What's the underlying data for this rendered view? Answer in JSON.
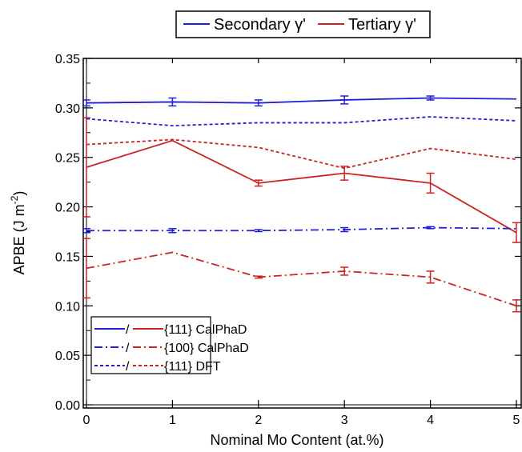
{
  "chart_data": {
    "type": "line",
    "xlabel": "Nominal Mo Content (at.%)",
    "ylabel_main": "APBE (J m",
    "ylabel_sup": "-2",
    "ylabel_close": ")",
    "xlim": [
      0,
      5
    ],
    "ylim": [
      0,
      0.35
    ],
    "x_ticks": [
      "0",
      "1",
      "2",
      "3",
      "4",
      "5"
    ],
    "y_ticks": [
      "0.00",
      "0.05",
      "0.10",
      "0.15",
      "0.20",
      "0.25",
      "0.30",
      "0.35"
    ],
    "grid": false,
    "colors": {
      "secondary": "#1f1fd6",
      "tertiary": "#cc2222"
    },
    "top_legend": {
      "placement": "top-center",
      "entries": [
        {
          "label": "Secondary γ'",
          "color_key": "secondary"
        },
        {
          "label": "Tertiary γ'",
          "color_key": "tertiary"
        }
      ]
    },
    "style_legend": {
      "placement": "bottom-left",
      "separator": "/",
      "entries": [
        {
          "dash": "solid",
          "label": "{111} CalPhaD"
        },
        {
          "dash": "dashdot",
          "label": "{100} CalPhaD"
        },
        {
          "dash": "dotted",
          "label": "{111} DFT"
        }
      ]
    },
    "x": [
      0,
      1,
      2,
      3,
      4,
      5
    ],
    "series": [
      {
        "key": "sec-111-calphad",
        "color_key": "secondary",
        "dash": "solid",
        "values": [
          0.305,
          0.306,
          0.305,
          0.308,
          0.31,
          0.309
        ],
        "errors": [
          0.003,
          0.004,
          0.003,
          0.004,
          0.002,
          0.0
        ]
      },
      {
        "key": "ter-111-calphad",
        "color_key": "tertiary",
        "dash": "solid",
        "values": [
          0.24,
          0.267,
          0.224,
          0.234,
          0.224,
          0.174
        ],
        "errors": [
          0.05,
          0.0,
          0.003,
          0.007,
          0.01,
          0.01
        ]
      },
      {
        "key": "sec-100-calphad",
        "color_key": "secondary",
        "dash": "dashdot",
        "values": [
          0.176,
          0.176,
          0.176,
          0.177,
          0.179,
          0.178
        ],
        "errors": [
          0.002,
          0.002,
          0.001,
          0.002,
          0.001,
          0.0
        ]
      },
      {
        "key": "ter-100-calphad",
        "color_key": "tertiary",
        "dash": "dashdot",
        "values": [
          0.138,
          0.154,
          0.129,
          0.135,
          0.129,
          0.1
        ],
        "errors": [
          0.03,
          0.0,
          0.001,
          0.004,
          0.006,
          0.006
        ]
      },
      {
        "key": "sec-111-dft",
        "color_key": "secondary",
        "dash": "dotted",
        "values": [
          0.289,
          0.282,
          0.285,
          0.285,
          0.291,
          0.287
        ],
        "errors": [
          0,
          0,
          0,
          0,
          0,
          0
        ]
      },
      {
        "key": "ter-111-dft",
        "color_key": "tertiary",
        "dash": "dotted",
        "values": [
          0.263,
          0.268,
          0.26,
          0.239,
          0.259,
          0.248
        ],
        "errors": [
          0,
          0,
          0,
          0,
          0,
          0
        ]
      }
    ]
  }
}
